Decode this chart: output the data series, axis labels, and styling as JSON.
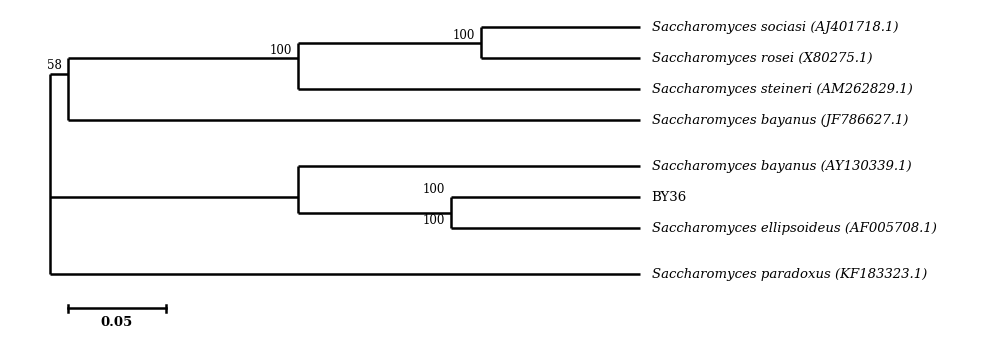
{
  "taxa": [
    "Saccharomyces sociasi (AJ401718.1)",
    "Saccharomyces rosei (X80275.1)",
    "Saccharomyces steineri (AM262829.1)",
    "Saccharomyces bayanus (JF786627.1)",
    "Saccharomyces bayanus (AY130339.1)",
    "BY36",
    "Saccharomyces ellipsoideus (AF005708.1)",
    "Saccharomyces paradoxus (KF183323.1)"
  ],
  "italic_taxa": [
    true,
    true,
    true,
    true,
    true,
    false,
    true,
    true
  ],
  "tree_color": "#000000",
  "background_color": "#ffffff",
  "lw": 1.8
}
